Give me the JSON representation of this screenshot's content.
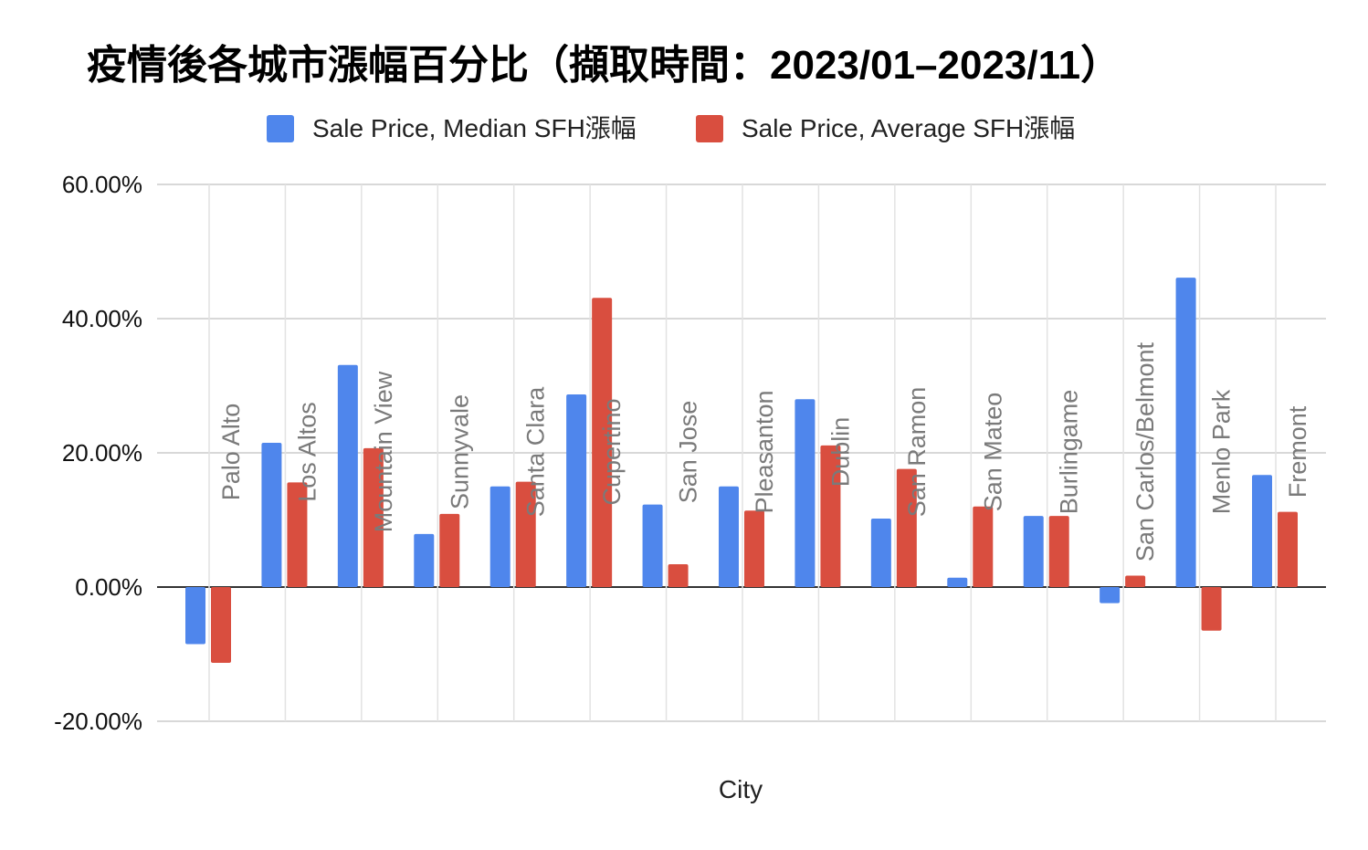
{
  "chart_data": {
    "type": "bar",
    "title": "疫情後各城市漲幅百分比（擷取時間：2023/01–2023/11）",
    "xlabel": "City",
    "ylabel": "",
    "ylim": [
      -20,
      60
    ],
    "yticks": [
      60,
      40,
      20,
      0,
      -20
    ],
    "ytick_labels": [
      "60.00%",
      "40.00%",
      "20.00%",
      "0.00%",
      "-20.00%"
    ],
    "grid": true,
    "legend_position": "top-center",
    "categories": [
      "Palo Alto",
      "Los Altos",
      "Mountain View",
      "Sunnyvale",
      "Santa Clara",
      "Cupertino",
      "San Jose",
      "Pleasanton",
      "Dublin",
      "San Ramon",
      "San Mateo",
      "Burlingame",
      "San Carlos/Belmont",
      "Menlo Park",
      "Fremont"
    ],
    "series": [
      {
        "name": "Sale Price, Median SFH漲幅",
        "color": "#4F86EC",
        "values": [
          -8.5,
          21.5,
          33.1,
          7.9,
          15.0,
          28.7,
          12.3,
          15.0,
          28.0,
          10.2,
          1.4,
          10.6,
          -2.4,
          46.1,
          16.7
        ]
      },
      {
        "name": "Sale Price, Average SFH漲幅",
        "color": "#D94E3F",
        "values": [
          -11.3,
          15.6,
          20.7,
          10.9,
          15.7,
          43.1,
          3.4,
          11.4,
          21.1,
          17.6,
          12.0,
          10.6,
          1.7,
          -6.5,
          11.2
        ]
      }
    ]
  }
}
